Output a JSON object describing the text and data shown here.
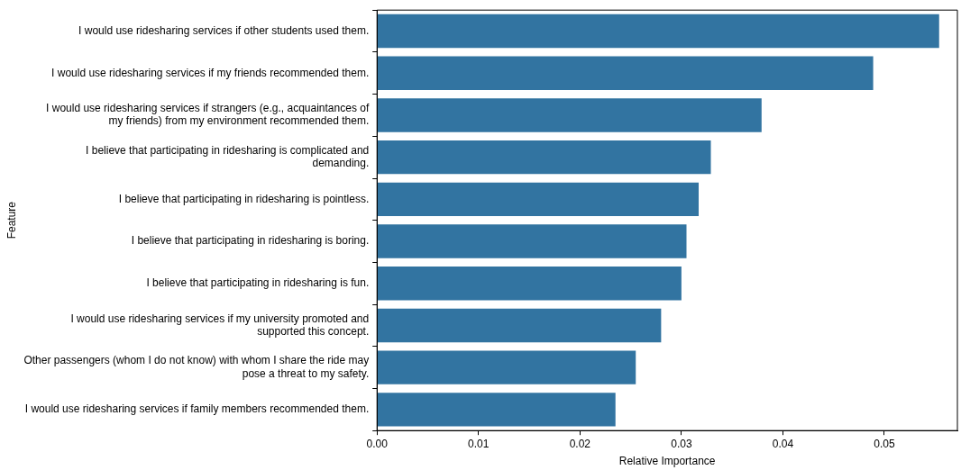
{
  "chart_data": {
    "type": "bar",
    "orientation": "horizontal",
    "xlabel": "Relative Importance",
    "ylabel": "Feature",
    "categories": [
      "I would use ridesharing services if other students used them.",
      "I would use ridesharing services if my friends recommended them.",
      "I would use ridesharing services if strangers (e.g., acquaintances of my friends) from my environment recommended them.",
      "I believe that participating in ridesharing is complicated and demanding.",
      "I believe that participating in ridesharing is pointless.",
      "I believe that participating in ridesharing is boring.",
      "I believe that participating in ridesharing is fun.",
      "I would use ridesharing services if my university promoted and supported this concept.",
      "Other passengers (whom I do not know) with whom I share the ride may pose a threat to my safety.",
      "I would use ridesharing services if family members recommended them."
    ],
    "values": [
      0.0554,
      0.0489,
      0.0379,
      0.0329,
      0.0317,
      0.0305,
      0.03,
      0.028,
      0.0255,
      0.0235
    ],
    "color": "#3274a1",
    "xlim": [
      0,
      0.0572
    ],
    "xticks": [
      {
        "value": 0,
        "label": "0.00"
      },
      0.01,
      0.02,
      0.03,
      0.04,
      0.05
    ],
    "grid": false,
    "legend": false
  }
}
